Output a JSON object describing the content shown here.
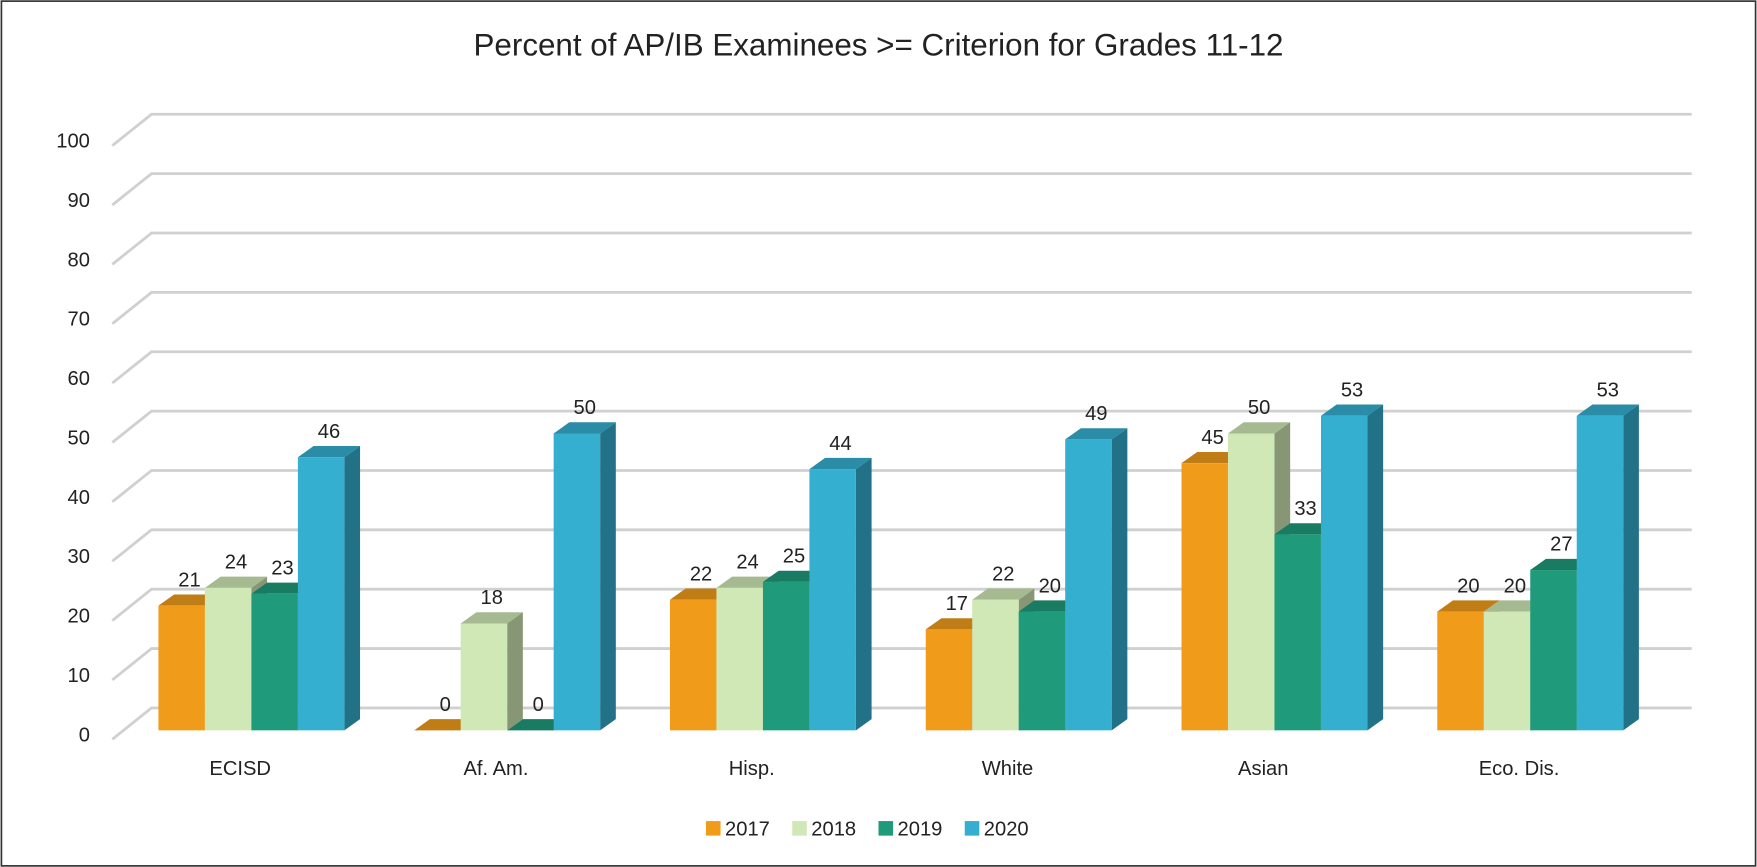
{
  "chart_data": {
    "type": "bar3d",
    "title": "Percent of AP/IB Examinees >= Criterion for Grades 11-12",
    "categories": [
      "ECISD",
      "Af. Am.",
      "Hisp.",
      "White",
      "Asian",
      "Eco. Dis."
    ],
    "series": [
      {
        "name": "2017",
        "color": "#f09c1a",
        "values": [
          21,
          0,
          22,
          17,
          45,
          20
        ]
      },
      {
        "name": "2018",
        "color": "#d0e8b5",
        "values": [
          24,
          18,
          24,
          22,
          50,
          20
        ]
      },
      {
        "name": "2019",
        "color": "#1f9a7b",
        "values": [
          23,
          0,
          25,
          20,
          33,
          27
        ]
      },
      {
        "name": "2020",
        "color": "#35afd0",
        "values": [
          46,
          50,
          44,
          49,
          53,
          53
        ]
      }
    ],
    "ylim": [
      0,
      100
    ],
    "yticks": [
      0,
      10,
      20,
      30,
      40,
      50,
      60,
      70,
      80,
      90,
      100
    ],
    "grid": true,
    "legend": "bottom"
  }
}
